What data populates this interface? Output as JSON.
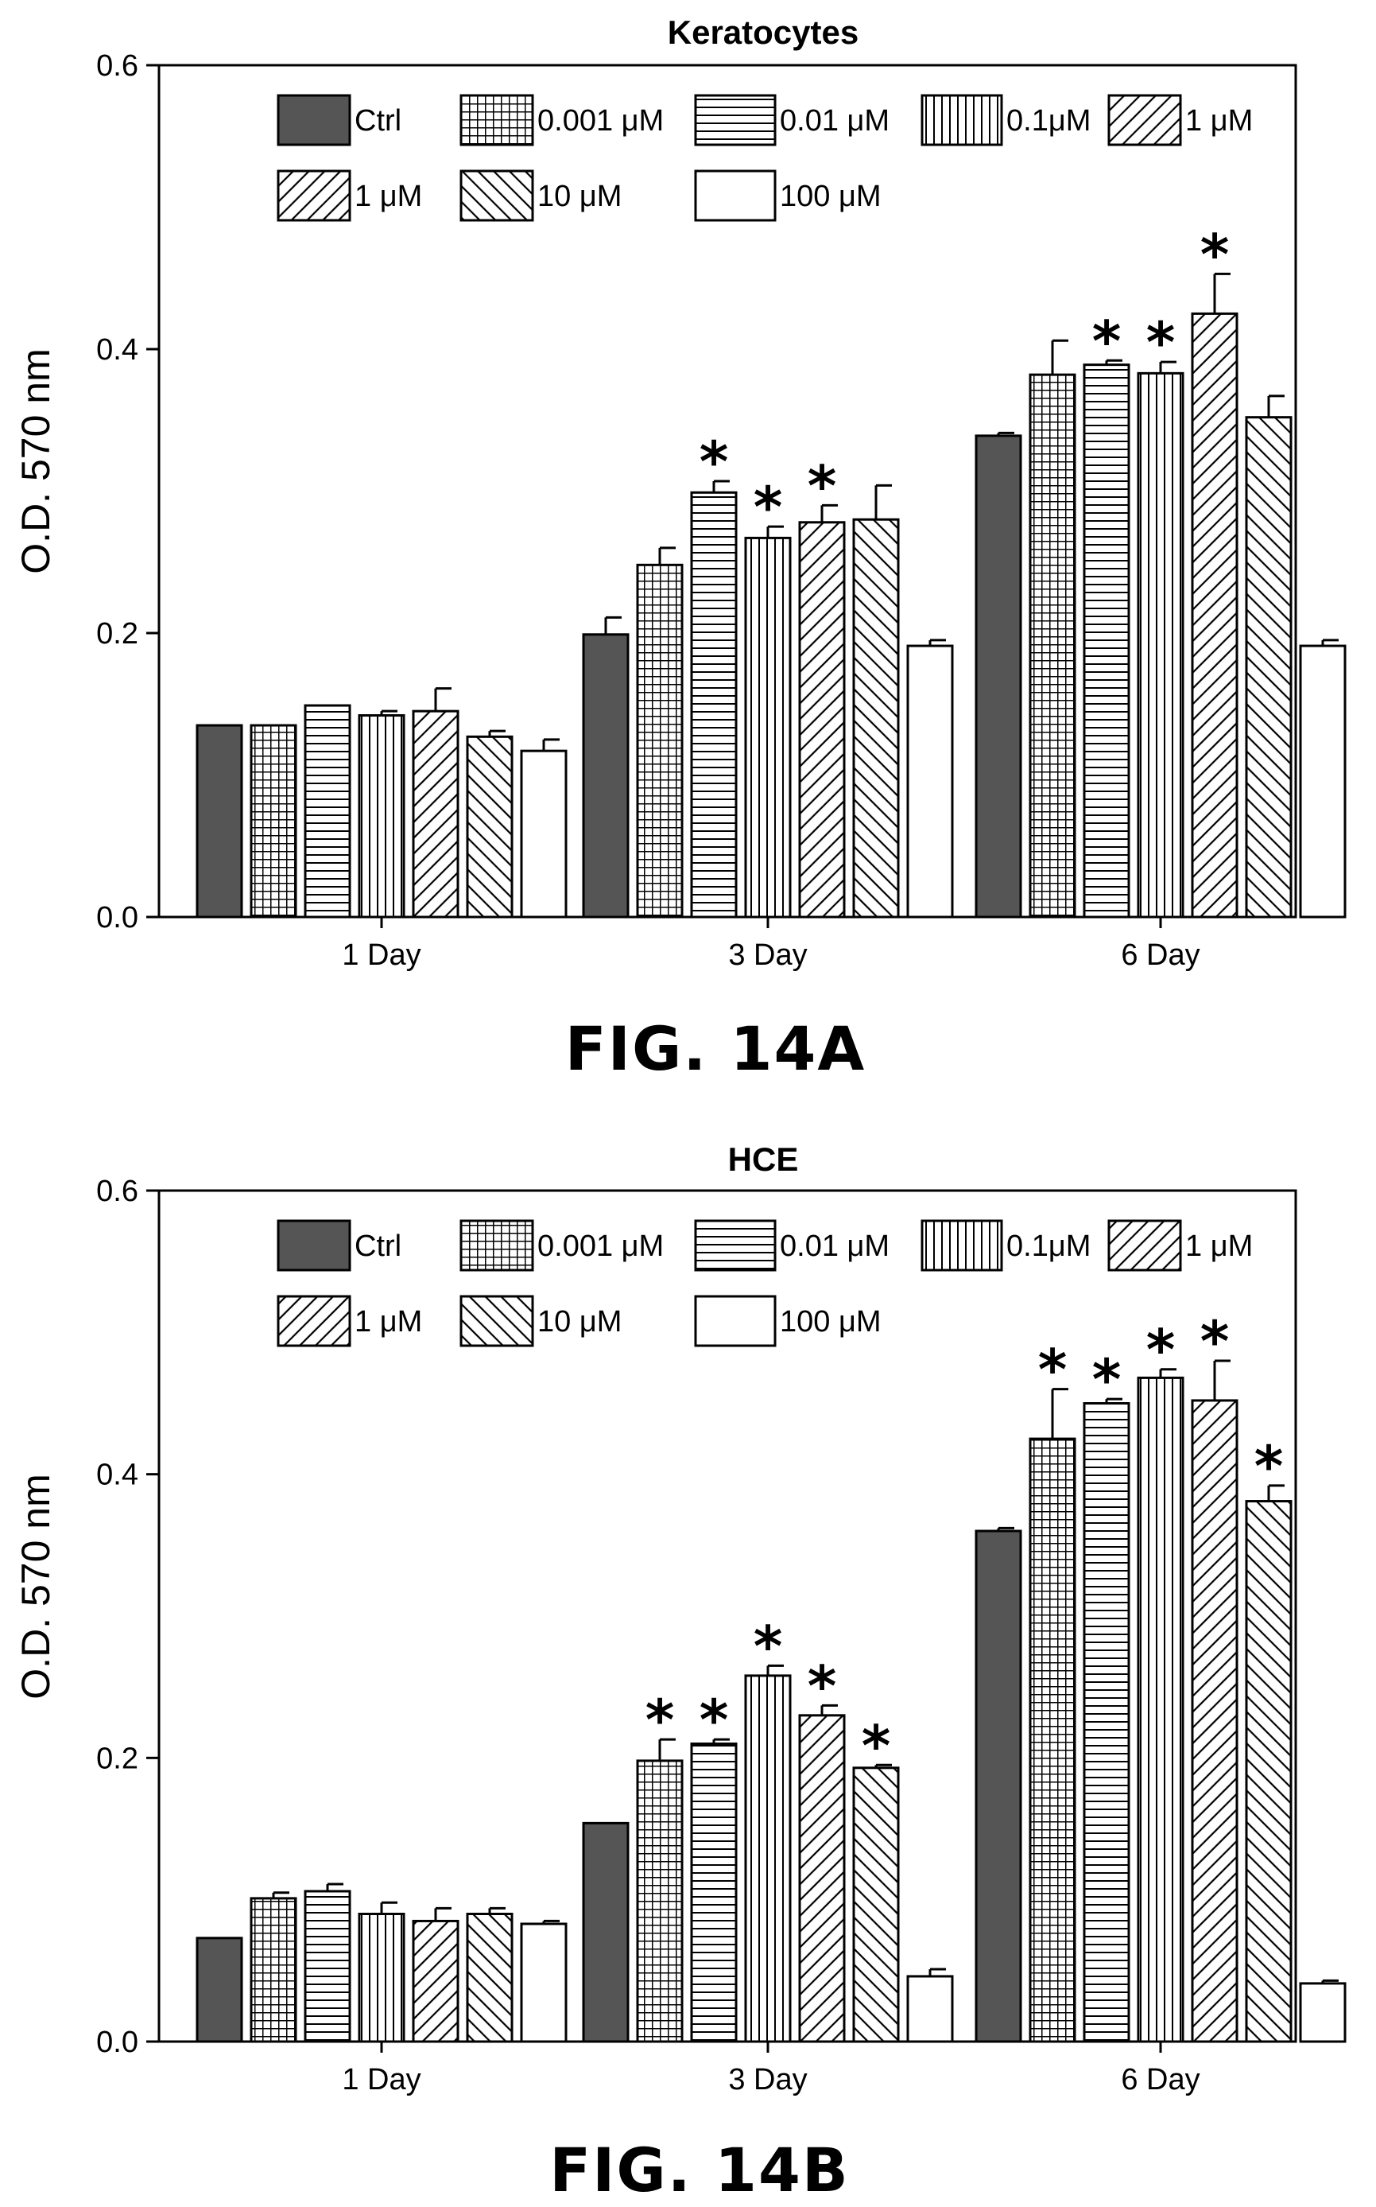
{
  "chart_data": [
    {
      "type": "bar",
      "title": "Keratocytes",
      "caption": "FIG. 14A",
      "ylabel": "O.D. 570 nm",
      "xlabel": "",
      "ylim": [
        0,
        0.6
      ],
      "yticks": [
        "0.0",
        "0.2",
        "0.4",
        "0.6"
      ],
      "categories": [
        "1 Day",
        "3 Day",
        "6 Day"
      ],
      "series": [
        {
          "name": "Ctrl",
          "pattern": "solid",
          "values": [
            0.135,
            0.199,
            0.339
          ],
          "errors": [
            0,
            0.012,
            0.002
          ],
          "significant": [
            false,
            false,
            false
          ]
        },
        {
          "name": "0.001 μM",
          "pattern": "grid",
          "values": [
            0.135,
            0.248,
            0.382
          ],
          "errors": [
            0,
            0.012,
            0.024
          ],
          "significant": [
            false,
            false,
            false
          ]
        },
        {
          "name": "0.01 μM",
          "pattern": "hlines",
          "values": [
            0.149,
            0.299,
            0.389
          ],
          "errors": [
            0,
            0.008,
            0.003
          ],
          "significant": [
            false,
            true,
            true
          ]
        },
        {
          "name": "0.1μM",
          "pattern": "vlines",
          "values": [
            0.142,
            0.267,
            0.383
          ],
          "errors": [
            0.003,
            0.008,
            0.008
          ],
          "significant": [
            false,
            true,
            true
          ]
        },
        {
          "name": "1 μM",
          "pattern": "diag-right",
          "values": [
            0.145,
            0.278,
            0.425
          ],
          "errors": [
            0.016,
            0.012,
            0.028
          ],
          "significant": [
            false,
            true,
            true
          ]
        },
        {
          "name": "10 μM",
          "pattern": "diag-left",
          "values": [
            0.127,
            0.28,
            0.352
          ],
          "errors": [
            0.004,
            0.024,
            0.015
          ],
          "significant": [
            false,
            false,
            false
          ]
        },
        {
          "name": "100 μM",
          "pattern": "white",
          "values": [
            0.117,
            0.191,
            0.191
          ],
          "errors": [
            0.008,
            0.004,
            0.004
          ],
          "significant": [
            false,
            false,
            false
          ]
        }
      ],
      "legend": [
        {
          "label": "Ctrl",
          "pattern": "solid"
        },
        {
          "label": "0.001 μM",
          "pattern": "grid"
        },
        {
          "label": "0.01 μM",
          "pattern": "hlines"
        },
        {
          "label": "0.1μM",
          "pattern": "vlines"
        },
        {
          "label": "1 μM",
          "pattern": "diag-right"
        },
        {
          "label": "1 μM",
          "pattern": "diag-right"
        },
        {
          "label": "10 μM",
          "pattern": "diag-left"
        },
        {
          "label": "100 μM",
          "pattern": "white"
        }
      ],
      "significance_marker": "*",
      "grid": false,
      "legend_position": "top"
    },
    {
      "type": "bar",
      "title": "HCE",
      "caption": "FIG. 14B",
      "ylabel": "O.D. 570 nm",
      "xlabel": "",
      "ylim": [
        0,
        0.6
      ],
      "yticks": [
        "0.0",
        "0.2",
        "0.4",
        "0.6"
      ],
      "categories": [
        "1 Day",
        "3 Day",
        "6 Day"
      ],
      "series": [
        {
          "name": "Ctrl",
          "pattern": "solid",
          "values": [
            0.073,
            0.154,
            0.36
          ],
          "errors": [
            0,
            0,
            0.002
          ],
          "significant": [
            false,
            false,
            false
          ]
        },
        {
          "name": "0.001 μM",
          "pattern": "grid",
          "values": [
            0.101,
            0.198,
            0.425
          ],
          "errors": [
            0.004,
            0.015,
            0.035
          ],
          "significant": [
            false,
            true,
            true
          ]
        },
        {
          "name": "0.01 μM",
          "pattern": "hlines",
          "values": [
            0.106,
            0.21,
            0.45
          ],
          "errors": [
            0.005,
            0.003,
            0.003
          ],
          "significant": [
            false,
            true,
            true
          ]
        },
        {
          "name": "0.1μM",
          "pattern": "vlines",
          "values": [
            0.09,
            0.258,
            0.468
          ],
          "errors": [
            0.008,
            0.007,
            0.006
          ],
          "significant": [
            false,
            true,
            true
          ]
        },
        {
          "name": "1 μM",
          "pattern": "diag-right",
          "values": [
            0.085,
            0.23,
            0.452
          ],
          "errors": [
            0.009,
            0.007,
            0.028
          ],
          "significant": [
            false,
            true,
            true
          ]
        },
        {
          "name": "10 μM",
          "pattern": "diag-left",
          "values": [
            0.09,
            0.193,
            0.381
          ],
          "errors": [
            0.004,
            0.002,
            0.011
          ],
          "significant": [
            false,
            true,
            true
          ]
        },
        {
          "name": "100 μM",
          "pattern": "white",
          "values": [
            0.083,
            0.046,
            0.041
          ],
          "errors": [
            0.002,
            0.005,
            0.002
          ],
          "significant": [
            false,
            false,
            false
          ]
        }
      ],
      "legend": [
        {
          "label": "Ctrl",
          "pattern": "solid"
        },
        {
          "label": "0.001 μM",
          "pattern": "grid"
        },
        {
          "label": "0.01 μM",
          "pattern": "hlines"
        },
        {
          "label": "0.1μM",
          "pattern": "vlines"
        },
        {
          "label": "1 μM",
          "pattern": "diag-right"
        },
        {
          "label": "1 μM",
          "pattern": "diag-right"
        },
        {
          "label": "10 μM",
          "pattern": "diag-left"
        },
        {
          "label": "100 μM",
          "pattern": "white"
        }
      ],
      "significance_marker": "*",
      "grid": false,
      "legend_position": "top"
    }
  ]
}
